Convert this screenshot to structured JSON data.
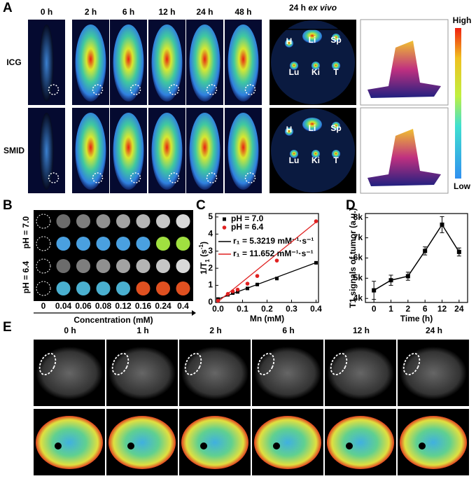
{
  "panel_a": {
    "letter": "A",
    "times": [
      "0 h",
      "2 h",
      "6 h",
      "12 h",
      "24 h",
      "48 h"
    ],
    "rows": [
      "ICG",
      "SMID"
    ],
    "ex_vivo_title": "24 h ",
    "ex_vivo_italic": "ex vivo",
    "organs": [
      "H",
      "Li",
      "Sp",
      "Lu",
      "Ki",
      "T"
    ],
    "colorbar_high": "High",
    "colorbar_low": "Low"
  },
  "panel_b": {
    "letter": "B",
    "rows": [
      "pH = 7.0",
      "pH = 6.4"
    ],
    "concentrations": [
      0,
      0.04,
      0.06,
      0.08,
      0.12,
      0.16,
      0.24,
      0.4
    ],
    "axis_label": "Concentration (mM)"
  },
  "panel_e": {
    "letter": "E",
    "times": [
      "0 h",
      "1 h",
      "2 h",
      "6 h",
      "12 h",
      "24 h"
    ]
  },
  "chart_data": [
    {
      "type": "scatter",
      "letter": "C",
      "x_label": "Mn (mM)",
      "y_label": "1/T",
      "y_label_sub": "1",
      "y_label_unit": " (s",
      "y_label_sup": "-1",
      "y_label_end": ")",
      "xlim": [
        -0.01,
        0.41
      ],
      "xticks": [
        {
          "value": 0,
          "label": "0.0"
        },
        0.1,
        0.2,
        0.3,
        0.4
      ],
      "ylim": [
        0,
        5.2
      ],
      "yticks": [
        0,
        1,
        2,
        3,
        4,
        5
      ],
      "series": [
        {
          "name": "pH = 7.0",
          "color": "#000000",
          "marker": "square",
          "x": [
            0,
            0.04,
            0.06,
            0.08,
            0.12,
            0.16,
            0.24,
            0.4
          ],
          "values": [
            0.2,
            0.45,
            0.55,
            0.62,
            0.82,
            1.05,
            1.4,
            2.32
          ],
          "fit": {
            "label": "r₁ = 5.3219 mM⁻¹·s⁻¹",
            "x": [
              0,
              0.4
            ],
            "values": [
              0.2,
              2.33
            ]
          }
        },
        {
          "name": "pH = 6.4",
          "color": "#e02020",
          "marker": "circle",
          "x": [
            0,
            0.04,
            0.06,
            0.08,
            0.12,
            0.16,
            0.24,
            0.4
          ],
          "values": [
            0.1,
            0.5,
            0.65,
            0.75,
            1.1,
            1.55,
            2.45,
            4.75
          ],
          "fit": {
            "label": "r₁ = 11.652 mM⁻¹·s⁻¹",
            "x": [
              0,
              0.4
            ],
            "values": [
              0.05,
              4.7
            ]
          }
        }
      ]
    },
    {
      "type": "line",
      "letter": "D",
      "x_label": "Time (h)",
      "y_label": "T1 signals of tumor (a.u.)",
      "categories": [
        "0",
        "1",
        "2",
        "6",
        "12",
        "24"
      ],
      "values": [
        4400,
        4900,
        5100,
        6350,
        7650,
        6300
      ],
      "errors": [
        450,
        250,
        200,
        200,
        400,
        200
      ],
      "color": "#000000",
      "ylim": [
        3800,
        8200
      ],
      "yticks": [
        {
          "value": 4000,
          "label": "4k"
        },
        {
          "value": 5000,
          "label": "5k"
        },
        {
          "value": 6000,
          "label": "6k"
        },
        {
          "value": 7000,
          "label": "7k"
        },
        {
          "value": 8000,
          "label": "8k"
        }
      ]
    }
  ]
}
